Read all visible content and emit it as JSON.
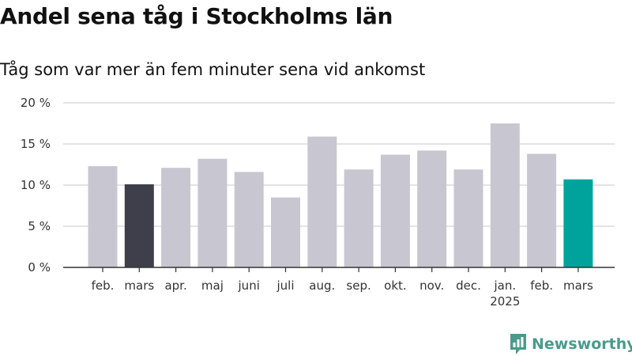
{
  "chart_data": {
    "type": "bar",
    "title": "Andel sena tåg i Stockholms län",
    "subtitle": "Tåg som var mer än fem minuter sena vid ankomst",
    "categories": [
      "feb.",
      "mars",
      "apr.",
      "maj",
      "juni",
      "juli",
      "aug.",
      "sep.",
      "okt.",
      "nov.",
      "dec.",
      "jan.\n2025",
      "feb.",
      "mars"
    ],
    "values": [
      12.3,
      10.1,
      12.1,
      13.2,
      11.6,
      8.5,
      15.9,
      11.9,
      13.7,
      14.2,
      11.9,
      17.5,
      13.8,
      10.7
    ],
    "ylim": [
      0,
      20
    ],
    "yticks": [
      0,
      5,
      10,
      15,
      20
    ],
    "ytick_labels": [
      "0 %",
      "5 %",
      "10 %",
      "15 %",
      "20 %"
    ],
    "grid": true,
    "colors": {
      "default": "#c8c7d1",
      "same_month_last_year": "#3f3e4b",
      "latest": "#00a39b"
    },
    "highlight": {
      "1": "same_month_last_year",
      "13": "latest"
    }
  },
  "brand": {
    "name": "Newsworthy",
    "color": "#4a9a8c"
  }
}
